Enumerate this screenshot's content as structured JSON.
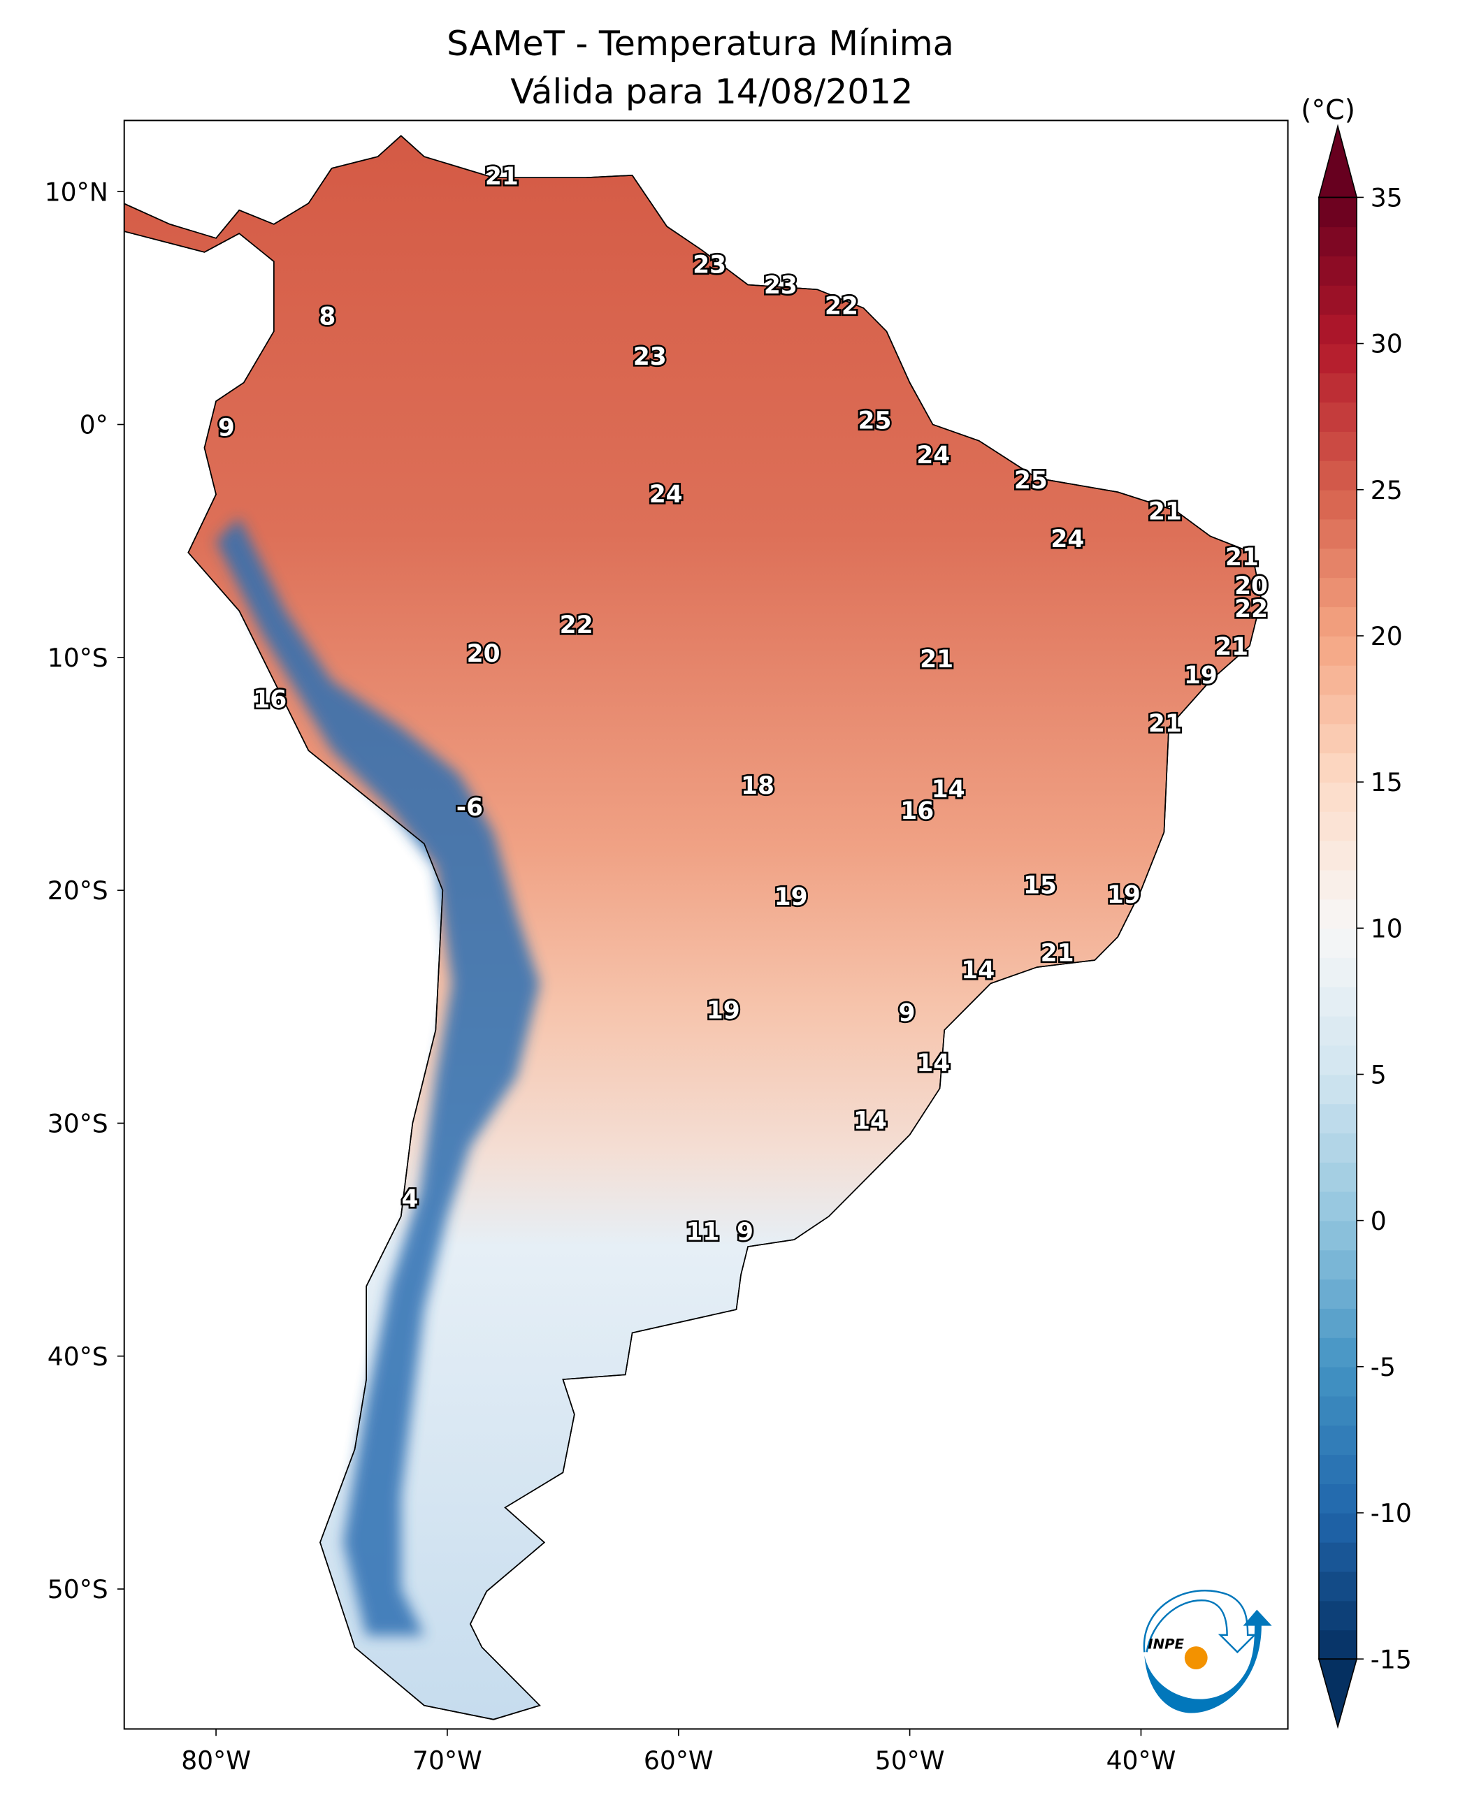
{
  "title": {
    "line1": "SAMeT - Temperatura Mínima",
    "line2": "Válida para 14/08/2012"
  },
  "map": {
    "extent": {
      "lon": [
        -84,
        -33.6
      ],
      "lat": [
        -56,
        13
      ]
    },
    "x_ticks": [
      {
        "lon": -80,
        "label": "80°W"
      },
      {
        "lon": -70,
        "label": "70°W"
      },
      {
        "lon": -60,
        "label": "60°W"
      },
      {
        "lon": -50,
        "label": "50°W"
      },
      {
        "lon": -40,
        "label": "40°W"
      }
    ],
    "y_ticks": [
      {
        "lat": 10,
        "label": "10°N"
      },
      {
        "lat": 0,
        "label": "0°"
      },
      {
        "lat": -10,
        "label": "10°S"
      },
      {
        "lat": -20,
        "label": "20°S"
      },
      {
        "lat": -30,
        "label": "30°S"
      },
      {
        "lat": -40,
        "label": "40°S"
      },
      {
        "lat": -50,
        "label": "50°S"
      }
    ],
    "station_values": [
      "21",
      "23",
      "23",
      "22",
      "8",
      "23",
      "9",
      "25",
      "24",
      "24",
      "25",
      "21",
      "24",
      "21",
      "20",
      "22",
      "21",
      "19",
      "22",
      "20",
      "21",
      "16",
      "21",
      "18",
      "14",
      "16",
      "-6",
      "19",
      "15",
      "19",
      "21",
      "14",
      "9",
      "19",
      "14",
      "14",
      "4",
      "11",
      "9"
    ]
  },
  "colorbar": {
    "unit": "(°C)",
    "min": -15,
    "max": 35,
    "extend": "both",
    "colormap": "RdBu_r",
    "ticks": [
      "35",
      "30",
      "25",
      "20",
      "15",
      "10",
      "5",
      "0",
      "-5",
      "-10",
      "-15"
    ],
    "tick_values": [
      35,
      30,
      25,
      20,
      15,
      10,
      5,
      0,
      -5,
      -10,
      -15
    ],
    "colors": [
      "#053061",
      "#2166ac",
      "#4393c3",
      "#92c5de",
      "#d1e5f0",
      "#f7f7f7",
      "#fddbc7",
      "#f4a582",
      "#d6604d",
      "#b2182b",
      "#67001f"
    ]
  },
  "logo": {
    "text": "INPE",
    "blue": "#0277bb",
    "orange": "#f39200"
  }
}
